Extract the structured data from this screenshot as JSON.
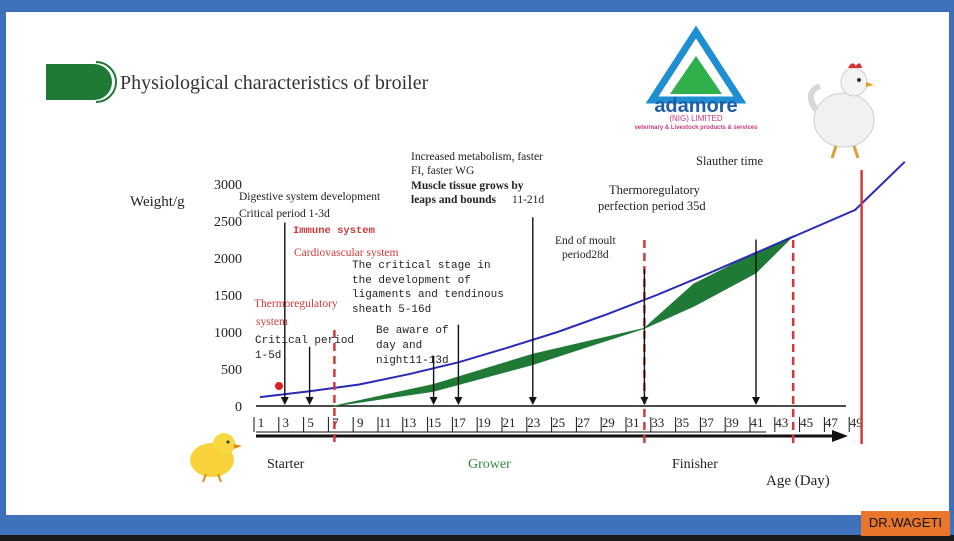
{
  "slide": {
    "title": "Physiological characteristics of broiler",
    "credit": "DR.WAGETI"
  },
  "logo": {
    "name": "adamore",
    "sub": "(NIG) LIMITED",
    "tagline": "veterinary & Livestock products & services",
    "colors": {
      "outer": "#1e8fd0",
      "inner": "#2fb04a",
      "text": "#1e5fa8",
      "sub": "#c93a7a"
    }
  },
  "chart_data": {
    "type": "line",
    "ylabel": "Weight/g",
    "xlabel": "Age (Day)",
    "ylim": [
      0,
      3000
    ],
    "yticks": [
      "0",
      "500",
      "1000",
      "1500",
      "2000",
      "2500",
      "3000"
    ],
    "xticks": [
      "1",
      "3",
      "5",
      "7",
      "9",
      "11",
      "13",
      "15",
      "17",
      "19",
      "21",
      "23",
      "25",
      "27",
      "29",
      "31",
      "33",
      "35",
      "37",
      "39",
      "41",
      "43",
      "45",
      "47",
      "49"
    ],
    "growth_curve": {
      "x": [
        1,
        5,
        9,
        13,
        17,
        21,
        25,
        29,
        33,
        37,
        41,
        45,
        49,
        53
      ],
      "y": [
        120,
        200,
        290,
        430,
        590,
        790,
        1000,
        1240,
        1500,
        1780,
        2070,
        2360,
        2650,
        3300
      ]
    },
    "green_band": [
      {
        "x": [
          7,
          15,
          23,
          32
        ],
        "upper": [
          0,
          290,
          700,
          1050
        ],
        "lower": [
          0,
          200,
          560,
          1050
        ]
      },
      {
        "x": [
          32,
          36,
          41,
          44
        ],
        "upper": [
          1050,
          1650,
          2070,
          2300
        ],
        "lower": [
          1050,
          1350,
          1800,
          2300
        ]
      }
    ],
    "dashed_markers": [
      7,
      32,
      44
    ],
    "solid_markers": [
      50
    ],
    "arrows": [
      {
        "x": 3,
        "y_top": 2480
      },
      {
        "x": 5,
        "y_top": 800
      },
      {
        "x": 15,
        "y_top": 680
      },
      {
        "x": 17,
        "y_top": 1100
      },
      {
        "x": 23,
        "y_top": 2550
      },
      {
        "x": 32,
        "y_top": 1850
      },
      {
        "x": 41,
        "y_top": 2250
      }
    ],
    "annotations": {
      "digestive": "Digestive system development",
      "critical1": "Critical period 1-3d",
      "immune": "Immune system",
      "cardio": "Cardiovascular system",
      "thermo_a": "Thermoregulatory",
      "thermo_b": "system",
      "crit5_a": "Critical period",
      "crit5_b": "1-5d",
      "lig_a": "The critical stage in",
      "lig_b": "the development of",
      "lig_c": "ligaments and tendinous",
      "lig_d": "sheath 5-16d",
      "day_a": "Be aware of",
      "day_b": "day and",
      "day_c": "night11-13d",
      "meta_a": "Increased metabolism, faster",
      "meta_b": "FI, faster WG",
      "meta_c": "Muscle tissue grows by",
      "meta_d": "leaps and bounds",
      "meta_e": "11-21d",
      "moult_a": "End of moult",
      "moult_b": "period28d",
      "thermop_a": "Thermoregulatory",
      "thermop_b": "perfection period 35d",
      "slaughter": "Slauther time"
    },
    "phases": {
      "starter": "Starter",
      "grower": "Grower",
      "finisher": "Finisher"
    },
    "colors": {
      "curve": "#2a2ab8",
      "band": "#1f7a35",
      "marker": "#d23a3a",
      "axis": "#111111",
      "red_text": "#d23a3a",
      "grower": "#2f8a3c"
    }
  }
}
